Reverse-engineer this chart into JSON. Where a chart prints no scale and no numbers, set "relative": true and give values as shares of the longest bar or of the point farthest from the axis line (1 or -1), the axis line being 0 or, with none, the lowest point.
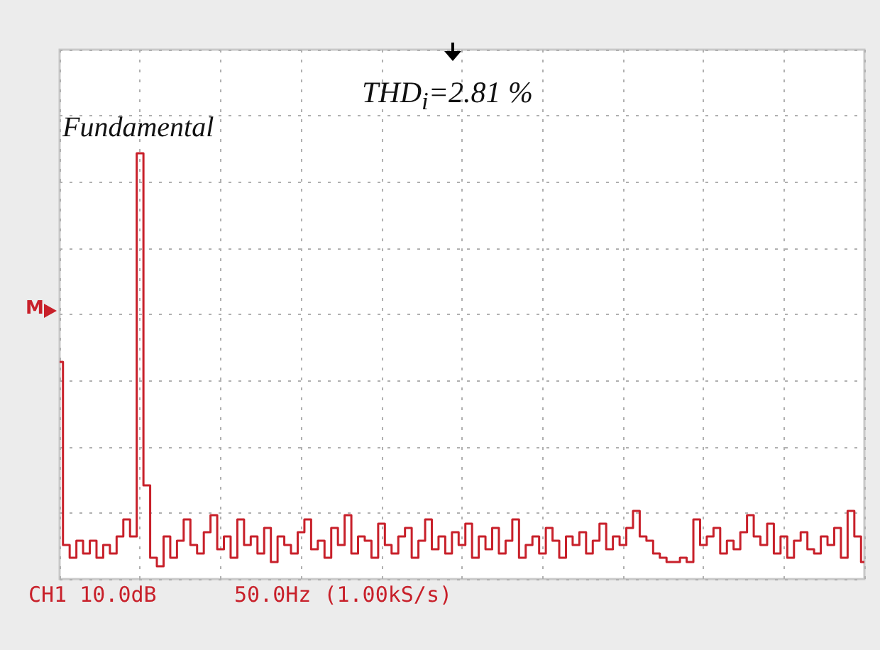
{
  "chart_data": {
    "type": "step",
    "relative": true,
    "color": "#c8202a",
    "grid": true,
    "categories": [
      null,
      null,
      null,
      null,
      null,
      null,
      null,
      null,
      null,
      null,
      null,
      null,
      null,
      null,
      null,
      null,
      null,
      null,
      null,
      null,
      null,
      null,
      null,
      null,
      null,
      null,
      null,
      null,
      null,
      null,
      null,
      null,
      null,
      null,
      null,
      null,
      null,
      null,
      null,
      null,
      null,
      null,
      null,
      null,
      null,
      null,
      null,
      null,
      null,
      null,
      null,
      null,
      null,
      null,
      null,
      null,
      null,
      null,
      null,
      null,
      null,
      null,
      null,
      null,
      null,
      null,
      null,
      null,
      null,
      null,
      null,
      null,
      null,
      null,
      null,
      null,
      null,
      null,
      null,
      null,
      null,
      null,
      null,
      null,
      null,
      null,
      null,
      null,
      null,
      null,
      null,
      null,
      null,
      null,
      null,
      null,
      null,
      null,
      null,
      null,
      null,
      null,
      null,
      null,
      null,
      null,
      null,
      null,
      null,
      null,
      null,
      null,
      null,
      null,
      null,
      null,
      null,
      null,
      null,
      null,
      null
    ],
    "values": [
      0.51,
      0.08,
      0.05,
      0.09,
      0.06,
      0.09,
      0.05,
      0.08,
      0.06,
      0.1,
      0.14,
      0.1,
      1.0,
      0.22,
      0.05,
      0.03,
      0.1,
      0.05,
      0.09,
      0.14,
      0.08,
      0.06,
      0.11,
      0.15,
      0.07,
      0.1,
      0.05,
      0.14,
      0.08,
      0.1,
      0.06,
      0.12,
      0.04,
      0.1,
      0.08,
      0.06,
      0.11,
      0.14,
      0.07,
      0.09,
      0.05,
      0.12,
      0.08,
      0.15,
      0.06,
      0.1,
      0.09,
      0.05,
      0.13,
      0.08,
      0.06,
      0.1,
      0.12,
      0.05,
      0.09,
      0.14,
      0.07,
      0.1,
      0.06,
      0.11,
      0.08,
      0.13,
      0.05,
      0.1,
      0.07,
      0.12,
      0.06,
      0.09,
      0.14,
      0.05,
      0.08,
      0.1,
      0.06,
      0.12,
      0.09,
      0.05,
      0.1,
      0.08,
      0.11,
      0.06,
      0.09,
      0.13,
      0.07,
      0.1,
      0.08,
      0.12,
      0.16,
      0.1,
      0.09,
      0.06,
      0.05,
      0.04,
      0.04,
      0.05,
      0.04,
      0.14,
      0.08,
      0.1,
      0.12,
      0.06,
      0.09,
      0.07,
      0.11,
      0.15,
      0.1,
      0.08,
      0.13,
      0.06,
      0.1,
      0.05,
      0.09,
      0.11,
      0.07,
      0.06,
      0.1,
      0.08,
      0.12,
      0.05,
      0.16,
      0.1,
      0.04
    ],
    "annotations": [
      "Fundamental",
      "THD$_{i}$=2.81 %",
      "CH1 10.0dB",
      "50.0Hz (1.00kS/s)",
      "M"
    ]
  }
}
